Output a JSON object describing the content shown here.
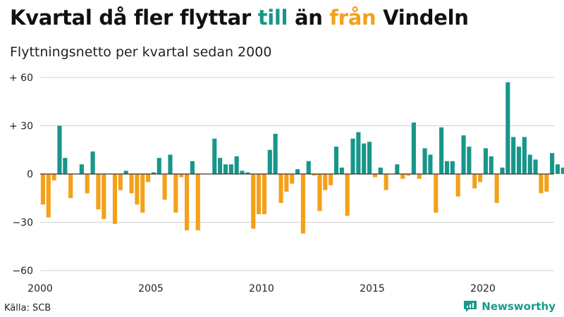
{
  "header": {
    "title_parts": [
      "Kvartal då fler flyttar ",
      "till",
      " än ",
      "från",
      " Vindeln"
    ],
    "subtitle": "Flyttningsnetto per kvartal sedan 2000"
  },
  "footer": {
    "source": "Källa: SCB",
    "brand": "Newsworthy"
  },
  "colors": {
    "positive": "#17968a",
    "negative": "#f4a019",
    "grid": "#d0d0d0",
    "zero_line": "#333333",
    "brand": "#1a9a8c"
  },
  "chart_data": {
    "type": "bar",
    "x_start": 2000,
    "quarters_per_year": 4,
    "ylim": [
      -60,
      60
    ],
    "y_ticks": [
      60,
      30,
      0,
      -30,
      -60
    ],
    "y_tick_labels": [
      "+ 60",
      "+ 30",
      "0",
      "−30",
      "−60"
    ],
    "x_ticks": [
      2000,
      2005,
      2010,
      2015,
      2020
    ],
    "x_tick_labels": [
      "2000",
      "2005",
      "2010",
      "2015",
      "2020"
    ],
    "grid": true,
    "values": [
      -19,
      -27,
      -4,
      30,
      10,
      -15,
      0,
      6,
      -12,
      14,
      -22,
      -28,
      0,
      -31,
      -10,
      2,
      -12,
      -19,
      -24,
      -5,
      1,
      10,
      -16,
      12,
      -24,
      -2,
      -35,
      8,
      -35,
      0,
      0,
      22,
      10,
      6,
      6,
      11,
      2,
      1,
      -34,
      -25,
      -25,
      15,
      25,
      -18,
      -11,
      -6,
      3,
      -37,
      8,
      -1,
      -23,
      -10,
      -7,
      17,
      4,
      -26,
      22,
      26,
      19,
      20,
      -2,
      4,
      -10,
      0,
      6,
      -3,
      -1,
      32,
      -3,
      16,
      12,
      -24,
      29,
      8,
      8,
      -14,
      24,
      17,
      -9,
      -5,
      16,
      11,
      -18,
      4,
      57,
      23,
      17,
      23,
      12,
      9,
      -12,
      -11,
      13,
      6,
      4
    ]
  }
}
